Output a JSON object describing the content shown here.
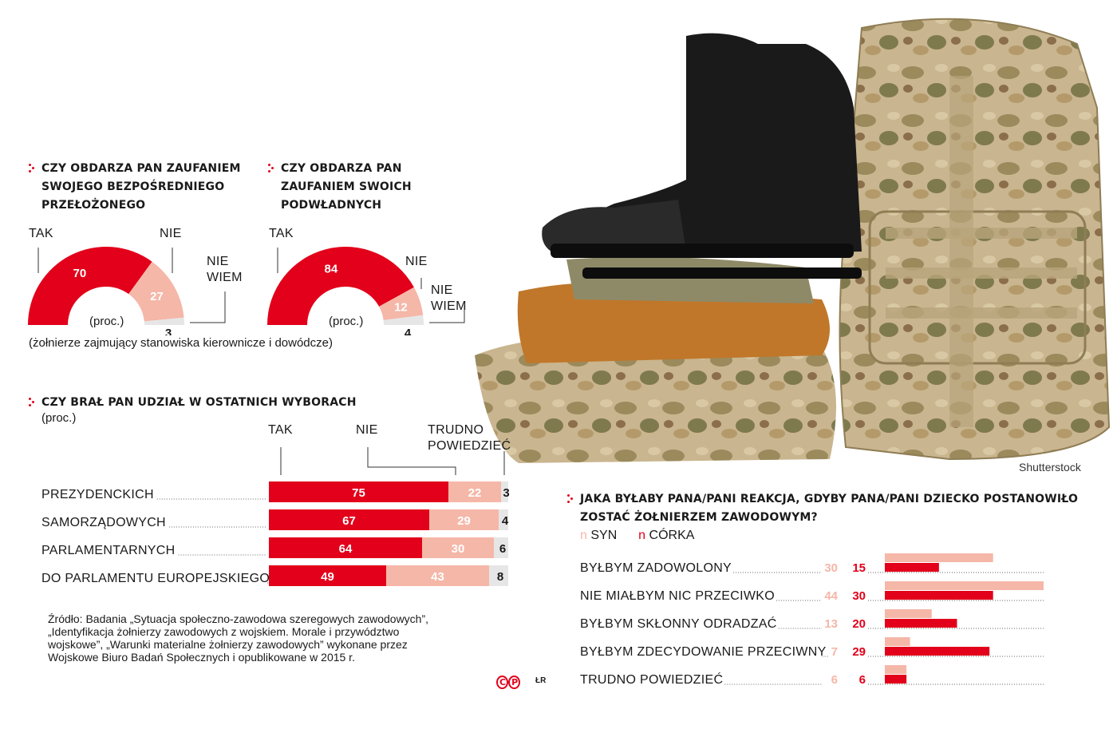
{
  "colors": {
    "red": "#e2001a",
    "pink": "#f5b7a8",
    "grey": "#e6e6e6"
  },
  "donut1": {
    "title": [
      "Czy obdarza pan zaufaniem",
      "swojego bezpośredniego",
      "przełożonego"
    ],
    "tak_label": "TAK",
    "nie_label": "NIE",
    "niewiem_label": [
      "NIE",
      "WIEM"
    ],
    "unit": "(proc.)",
    "note": "(żołnierze zajmujący stanowiska kierownicze i dowódcze)"
  },
  "donut2": {
    "title": [
      "Czy obdarza pan",
      "zaufaniem swoich",
      "podwładnych"
    ],
    "tak_label": "TAK",
    "nie_label": "NIE",
    "niewiem_label": [
      "NIE",
      "WIEM"
    ],
    "unit": "(proc.)"
  },
  "elections": {
    "title": "Czy brał pan udział w ostatnich wyborach",
    "unit": "(proc.)",
    "col_tak": "TAK",
    "col_nie": "NIE",
    "col_trudno": [
      "TRUDNO",
      "POWIEDZIEĆ"
    ]
  },
  "reaction": {
    "title": [
      "Jaka byłaby pana/pani reakcja, gdyby pana/pani dziecko postanowiło",
      "zostać żołnierzem zawodowym?"
    ],
    "legend_marker": "n",
    "legend_syn": "SYN",
    "legend_corka": "CÓRKA"
  },
  "source": [
    "Źródło: Badania „Sytuacja społeczno-zawodowa szeregowych zawodowych”,",
    "„Identyfikacja żołnierzy zawodowych z wojskiem. Morale i przywództwo",
    "wojskowe”, „Warunki materialne żołnierzy zawodowych” wykonane przez",
    "Wojskowe Biuro Badań Społecznych i opublikowane w 2015 r."
  ],
  "photo_credit": "Shutterstock",
  "logo_text": "CP",
  "author": "ŁR",
  "chart_data": [
    {
      "type": "pie",
      "title": "Czy obdarza pan zaufaniem swojego bezpośredniego przełożonego",
      "categories": [
        "TAK",
        "NIE",
        "NIE WIEM"
      ],
      "values": [
        70,
        27,
        3
      ]
    },
    {
      "type": "pie",
      "title": "Czy obdarza pan zaufaniem swoich podwładnych",
      "categories": [
        "TAK",
        "NIE",
        "NIE WIEM"
      ],
      "values": [
        84,
        12,
        4
      ]
    },
    {
      "type": "bar",
      "title": "Czy brał pan udział w ostatnich wyborach",
      "categories": [
        "PREZYDENCKICH",
        "SAMORZĄDOWYCH",
        "PARLAMENTARNYCH",
        "DO PARLAMENTU EUROPEJSKIEGO"
      ],
      "series": [
        {
          "name": "TAK",
          "values": [
            75,
            67,
            64,
            49
          ]
        },
        {
          "name": "NIE",
          "values": [
            22,
            29,
            30,
            43
          ]
        },
        {
          "name": "TRUDNO POWIEDZIEĆ",
          "values": [
            3,
            4,
            6,
            8
          ]
        }
      ]
    },
    {
      "type": "bar",
      "title": "Jaka byłaby pana/pani reakcja, gdyby pana/pani dziecko postanowiło zostać żołnierzem zawodowym?",
      "categories": [
        "BYŁBYM ZADOWOLONY",
        "NIE MIAŁBYM NIC PRZECIWKO",
        "BYŁBYM SKŁONNY ODRADZAĆ",
        "BYŁBYM ZDECYDOWANIE PRZECIWNY",
        "TRUDNO POWIEDZIEĆ"
      ],
      "series": [
        {
          "name": "SYN",
          "values": [
            30,
            44,
            13,
            7,
            6
          ]
        },
        {
          "name": "CÓRKA",
          "values": [
            15,
            30,
            20,
            29,
            6
          ]
        }
      ]
    }
  ]
}
